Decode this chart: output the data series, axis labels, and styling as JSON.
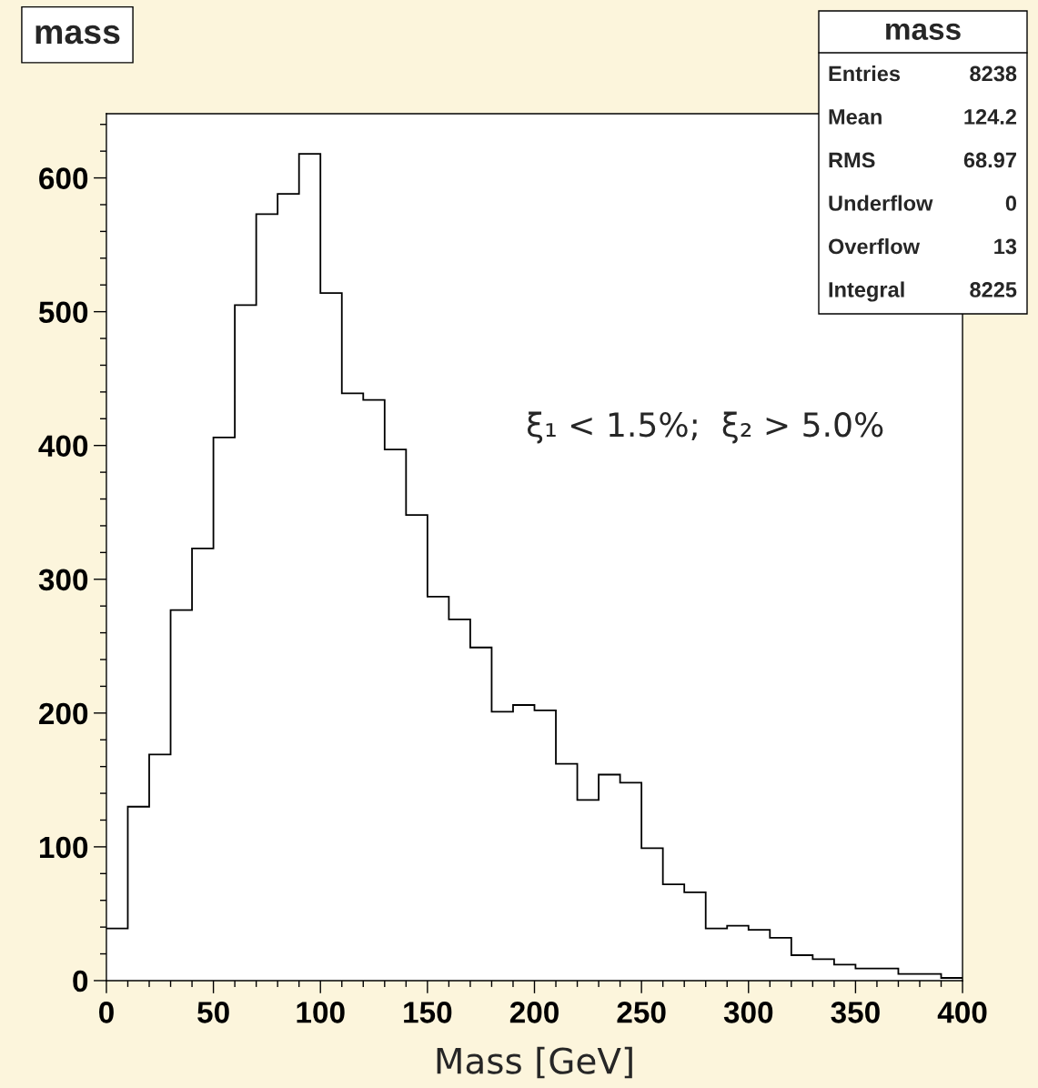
{
  "chart_data": {
    "type": "histogram",
    "title": "mass",
    "xlabel": "Mass [GeV]",
    "bins": [
      0,
      10,
      20,
      30,
      40,
      50,
      60,
      70,
      80,
      90,
      100,
      110,
      120,
      130,
      140,
      150,
      160,
      170,
      180,
      190,
      200,
      210,
      220,
      230,
      240,
      250,
      260,
      270,
      280,
      290,
      300,
      310,
      320,
      330,
      340,
      350,
      360,
      370,
      380,
      390,
      400
    ],
    "values": [
      39,
      130,
      169,
      277,
      323,
      406,
      505,
      573,
      588,
      618,
      514,
      439,
      434,
      397,
      348,
      287,
      270,
      249,
      201,
      206,
      202,
      162,
      135,
      154,
      148,
      99,
      72,
      66,
      39,
      41,
      38,
      32,
      19,
      16,
      12,
      9,
      9,
      5,
      5,
      2
    ],
    "color": "#000000",
    "xlim": [
      0,
      400
    ],
    "xticks": [
      0,
      50,
      100,
      150,
      200,
      250,
      300,
      350,
      400
    ],
    "ylim": [
      0,
      648
    ],
    "yticks": [
      0,
      100,
      200,
      300,
      400,
      500,
      600
    ],
    "annotations": [
      "mass",
      "Entries",
      "8238",
      "Mean",
      "124.2",
      "RMS",
      "68.97",
      "Underflow",
      "0",
      "Overflow",
      "13",
      "Integral",
      "8225",
      "ξ₁ < 1.5%;  ξ₂ > 5.0%"
    ]
  }
}
